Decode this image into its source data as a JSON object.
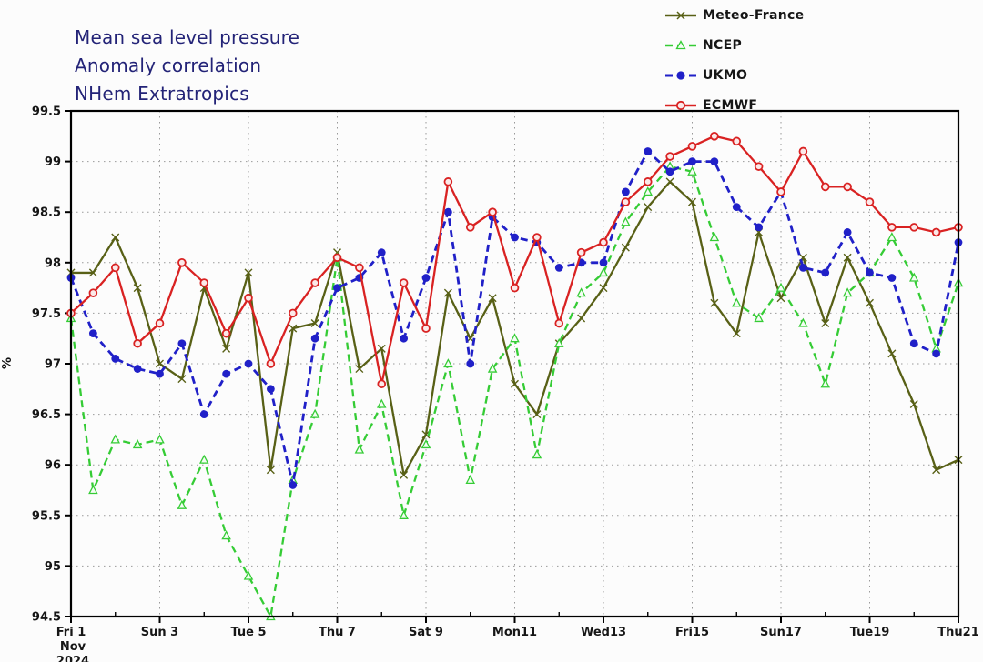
{
  "title": {
    "line1": "Mean sea level pressure",
    "line2": "Anomaly correlation",
    "line3": "NHem Extratropics"
  },
  "chart_data": {
    "type": "line",
    "title": "Mean sea level pressure Anomaly correlation NHem Extratropics",
    "xlabel": "",
    "ylabel": "%",
    "x_start_day": 1,
    "x_step_days": 0.5,
    "x_range_days": [
      1,
      21
    ],
    "ylim": [
      94.5,
      99.5
    ],
    "y_tick_step": 0.5,
    "y_tick_labels": [
      "99.5",
      "99",
      "98.5",
      "98",
      "97.5",
      "97",
      "96.5",
      "96",
      "95.5",
      "95",
      "94.5"
    ],
    "grid": true,
    "legend_position": "top-right",
    "x_ticks": [
      {
        "day": 1,
        "label": "Fri 1",
        "sub": [
          "Nov",
          "2024"
        ],
        "color": "#161616"
      },
      {
        "day": 3,
        "label": "Sun 3",
        "color": "#bb3a55"
      },
      {
        "day": 5,
        "label": "Tue 5",
        "color": "#161616"
      },
      {
        "day": 7,
        "label": "Thu 7",
        "color": "#161616"
      },
      {
        "day": 9,
        "label": "Sat 9",
        "color": "#161616"
      },
      {
        "day": 11,
        "label": "Mon11",
        "color": "#161616"
      },
      {
        "day": 13,
        "label": "Wed13",
        "color": "#161616"
      },
      {
        "day": 15,
        "label": "Fri15",
        "color": "#161616"
      },
      {
        "day": 17,
        "label": "Sun17",
        "color": "#bb3a55"
      },
      {
        "day": 19,
        "label": "Tue19",
        "color": "#161616"
      },
      {
        "day": 21,
        "label": "Thu21",
        "color": "#161616"
      }
    ],
    "series": [
      {
        "name": "Meteo-France",
        "color": "#586016",
        "style": "solid",
        "marker": "x",
        "values": [
          97.9,
          97.9,
          98.25,
          97.75,
          97.0,
          96.85,
          97.75,
          97.15,
          97.9,
          95.95,
          97.35,
          97.4,
          98.1,
          96.95,
          97.15,
          95.9,
          96.3,
          97.7,
          97.25,
          97.65,
          96.8,
          96.5,
          97.2,
          97.45,
          97.75,
          98.15,
          98.55,
          98.8,
          98.6,
          97.6,
          97.3,
          98.3,
          97.65,
          98.05,
          97.4,
          98.05,
          97.6,
          97.1,
          96.6,
          95.95,
          96.05
        ]
      },
      {
        "name": "NCEP",
        "color": "#35cc35",
        "style": "dashed",
        "marker": "triangle",
        "values": [
          97.45,
          95.75,
          96.25,
          96.2,
          96.25,
          95.6,
          96.05,
          95.3,
          94.9,
          94.5,
          95.85,
          96.5,
          98.05,
          96.15,
          96.6,
          95.5,
          96.2,
          97.0,
          95.85,
          96.95,
          97.25,
          96.1,
          97.2,
          97.7,
          97.9,
          98.4,
          98.7,
          98.95,
          98.9,
          98.25,
          97.6,
          97.45,
          97.75,
          97.4,
          96.8,
          97.7,
          97.9,
          98.25,
          97.85,
          97.15,
          97.8
        ]
      },
      {
        "name": "UKMO",
        "color": "#2020c8",
        "style": "dashed",
        "marker": "circle-filled",
        "values": [
          97.85,
          97.3,
          97.05,
          96.95,
          96.9,
          97.2,
          96.5,
          96.9,
          97.0,
          96.75,
          95.8,
          97.25,
          97.75,
          97.85,
          98.1,
          97.25,
          97.85,
          98.5,
          97.0,
          98.45,
          98.25,
          98.2,
          97.95,
          98.0,
          98.0,
          98.7,
          99.1,
          98.9,
          99.0,
          99.0,
          98.55,
          98.35,
          98.7,
          97.95,
          97.9,
          98.3,
          97.9,
          97.85,
          97.2,
          97.1,
          98.2
        ]
      },
      {
        "name": "ECMWF",
        "color": "#d92222",
        "style": "solid",
        "marker": "circle-open",
        "values": [
          97.5,
          97.7,
          97.95,
          97.2,
          97.4,
          98.0,
          97.8,
          97.3,
          97.65,
          97.0,
          97.5,
          97.8,
          98.05,
          97.95,
          96.8,
          97.8,
          97.35,
          98.8,
          98.35,
          98.5,
          97.75,
          98.25,
          97.4,
          98.1,
          98.2,
          98.6,
          98.8,
          99.05,
          99.15,
          99.25,
          99.2,
          98.95,
          98.7,
          99.1,
          98.75,
          98.75,
          98.6,
          98.35,
          98.35,
          98.3,
          98.35
        ]
      }
    ]
  },
  "colors": {
    "title": "#232377",
    "axis": "#000000",
    "grid": "#999999",
    "highlight_date": "#bb3a55"
  }
}
